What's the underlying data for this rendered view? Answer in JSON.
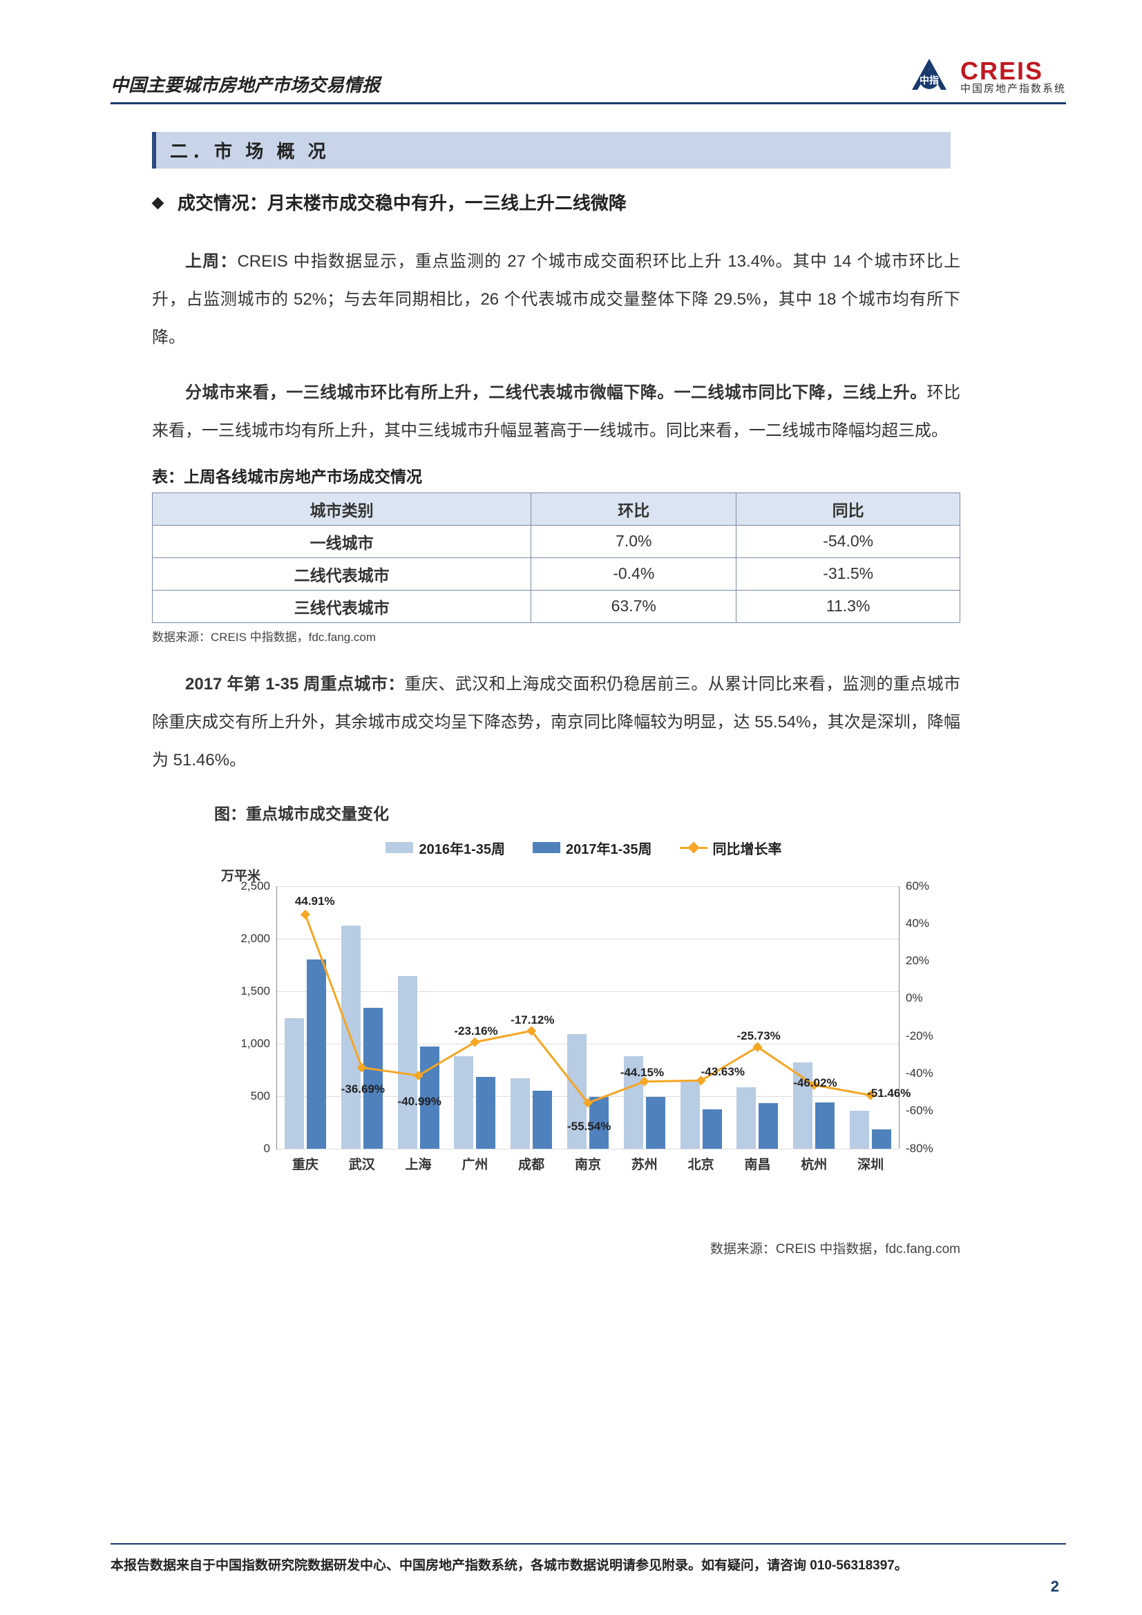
{
  "header": {
    "doc_title": "中国主要城市房地产市场交易情报",
    "logo_main": "CREIS",
    "logo_sub": "中国房地产指数系统"
  },
  "section": {
    "number": "二．",
    "title": "市 场 概 况"
  },
  "subheading": "成交情况：月末楼市成交稳中有升，一三线上升二线微降",
  "para1_a": "上周：",
  "para1_b": "CREIS 中指数据显示，重点监测的 27 个城市成交面积环比上升 13.4%。其中 14 个城市环比上升，占监测城市的 52%；与去年同期相比，26 个代表城市成交量整体下降 29.5%，其中 18 个城市均有所下降。",
  "para2_a": "分城市来看，一三线城市环比有所上升，二线代表城市微幅下降。一二线城市同比下降，三线上升。",
  "para2_b": "环比来看，一三线城市均有所上升，其中三线城市升幅显著高于一线城市。同比来看，一二线城市降幅均超三成。",
  "table": {
    "caption": "表：上周各线城市房地产市场成交情况",
    "headers": [
      "城市类别",
      "环比",
      "同比"
    ],
    "rows": [
      [
        "一线城市",
        "7.0%",
        "-54.0%"
      ],
      [
        "二线代表城市",
        "-0.4%",
        "-31.5%"
      ],
      [
        "三线代表城市",
        "63.7%",
        "11.3%"
      ]
    ],
    "header_bg": "#dbe5f1",
    "border_color": "#7a8aaa"
  },
  "source1": "数据来源：CREIS 中指数据，fdc.fang.com",
  "para3_a": "2017 年第 1-35 周重点城市：",
  "para3_b": "重庆、武汉和上海成交面积仍稳居前三。从累计同比来看，监测的重点城市除重庆成交有所上升外，其余城市成交均呈下降态势，南京同比降幅较为明显，达 55.54%，其次是深圳，降幅为 51.46%。",
  "chart": {
    "caption": "图：重点城市成交量变化",
    "legend": [
      "2016年1-35周",
      "2017年1-35周",
      "同比增长率"
    ],
    "y_left_label": "万平米",
    "y_left_max": 2500,
    "y_left_step": 500,
    "y_right_max": 60,
    "y_right_min": -80,
    "y_right_step": 20,
    "cities": [
      "重庆",
      "武汉",
      "上海",
      "广州",
      "成都",
      "南京",
      "苏州",
      "北京",
      "南昌",
      "杭州",
      "深圳"
    ],
    "series_2016": [
      1240,
      2120,
      1640,
      880,
      670,
      1090,
      880,
      650,
      580,
      820,
      360
    ],
    "series_2017": [
      1800,
      1340,
      970,
      680,
      550,
      490,
      490,
      370,
      430,
      440,
      180
    ],
    "growth": [
      44.91,
      -36.69,
      -40.99,
      -23.16,
      -17.12,
      -55.54,
      -44.15,
      -43.63,
      -25.73,
      -46.02,
      -51.46
    ],
    "growth_labels": [
      "44.91%",
      "-36.69%",
      "-40.99%",
      "-23.16%",
      "-17.12%",
      "-55.54%",
      "-44.15%",
      "-43.63%",
      "-25.73%",
      "-46.02%",
      "-51.46%"
    ],
    "colors": {
      "bar_2016": "#b8cce4",
      "bar_2017": "#4f81bd",
      "line": "#f5a623",
      "grid": "#dddddd",
      "axis": "#888888"
    }
  },
  "source2": "数据来源：CREIS 中指数据，fdc.fang.com",
  "footer": "本报告数据来自于中国指数研究院数据研发中心、中国房地产指数系统，各城市数据说明请参见附录。如有疑问，请咨询 010-56318397。",
  "page_num": "2"
}
